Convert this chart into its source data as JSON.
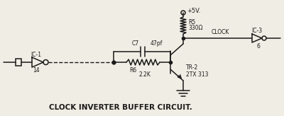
{
  "bg_color": "#f0ede4",
  "line_color": "#1a1a1a",
  "text_color": "#1a1a1a",
  "title": "CLOCK INVERTER BUFFER CIRCUIT.",
  "labels": {
    "ic1": "IC-1",
    "ic1_pin": "14",
    "c7": "C7",
    "c7_val": "47pf",
    "r6": "R6",
    "r6_val": "2.2K",
    "r5": "R5",
    "r5_val": "330Ω",
    "vcc": "+5V.",
    "tr2": "TR-2",
    "tr2_val": "2TX 313",
    "clock": "CLOCK",
    "ic3": "IC-3",
    "ic3_pin": "6"
  },
  "figsize": [
    4.0,
    1.64
  ],
  "dpi": 100
}
